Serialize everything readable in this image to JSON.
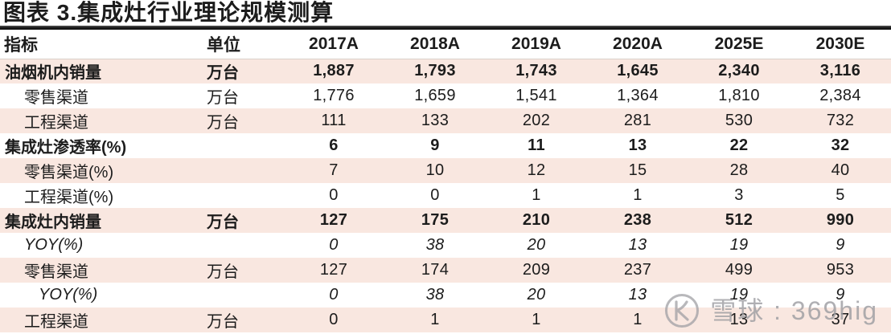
{
  "title": "图表 3.集成灶行业理论规模测算",
  "colors": {
    "stripe_pink": "#f9e7e0",
    "stripe_white": "#ffffff",
    "text": "#1c1c1c",
    "title_rule": "#161616",
    "watermark_gray": "#9e9ea3"
  },
  "table": {
    "header": {
      "indicator": "指标",
      "unit": "单位",
      "years": [
        "2017A",
        "2018A",
        "2019A",
        "2020A",
        "2025E",
        "2030E"
      ]
    },
    "rows": [
      {
        "label": "油烟机内销量",
        "indent": 0,
        "unit": "万台",
        "emphasis": "bold",
        "values": [
          "1,887",
          "1,793",
          "1,743",
          "1,645",
          "2,340",
          "3,116"
        ]
      },
      {
        "label": "零售渠道",
        "indent": 1,
        "unit": "万台",
        "emphasis": "normal",
        "values": [
          "1,776",
          "1,659",
          "1,541",
          "1,364",
          "1,810",
          "2,384"
        ]
      },
      {
        "label": "工程渠道",
        "indent": 1,
        "unit": "万台",
        "emphasis": "normal",
        "values": [
          "111",
          "133",
          "202",
          "281",
          "530",
          "732"
        ]
      },
      {
        "label": "集成灶渗透率(%)",
        "indent": 0,
        "unit": "",
        "emphasis": "bold",
        "values": [
          "6",
          "9",
          "11",
          "13",
          "22",
          "32"
        ]
      },
      {
        "label": "零售渠道(%)",
        "indent": 1,
        "unit": "",
        "emphasis": "normal",
        "values": [
          "7",
          "10",
          "12",
          "15",
          "28",
          "40"
        ]
      },
      {
        "label": "工程渠道(%)",
        "indent": 1,
        "unit": "",
        "emphasis": "normal",
        "values": [
          "0",
          "0",
          "1",
          "1",
          "3",
          "5"
        ]
      },
      {
        "label": "集成灶内销量",
        "indent": 0,
        "unit": "万台",
        "emphasis": "bold",
        "values": [
          "127",
          "175",
          "210",
          "238",
          "512",
          "990"
        ]
      },
      {
        "label": "YOY(%)",
        "indent": 1,
        "unit": "",
        "emphasis": "italic",
        "values": [
          "0",
          "38",
          "20",
          "13",
          "19",
          "9"
        ]
      },
      {
        "label": "零售渠道",
        "indent": 1,
        "unit": "万台",
        "emphasis": "normal",
        "values": [
          "127",
          "174",
          "209",
          "237",
          "499",
          "953"
        ]
      },
      {
        "label": "YOY(%)",
        "indent": 2,
        "unit": "",
        "emphasis": "italic",
        "values": [
          "0",
          "38",
          "20",
          "13",
          "19",
          "9"
        ]
      },
      {
        "label": "工程渠道",
        "indent": 1,
        "unit": "万台",
        "emphasis": "normal",
        "values": [
          "0",
          "1",
          "1",
          "1",
          "13",
          "37"
        ]
      }
    ]
  },
  "watermark": {
    "logo": "xueqiu-logo-icon",
    "text": "雪球 : 369hig"
  },
  "chart_data": {
    "type": "table",
    "title": "图表 3.集成灶行业理论规模测算",
    "columns": [
      "指标",
      "单位",
      "2017A",
      "2018A",
      "2019A",
      "2020A",
      "2025E",
      "2030E"
    ],
    "rows": [
      {
        "indicator": "油烟机内销量",
        "unit": "万台",
        "values": [
          1887,
          1793,
          1743,
          1645,
          2340,
          3116
        ]
      },
      {
        "indicator": "零售渠道",
        "unit": "万台",
        "values": [
          1776,
          1659,
          1541,
          1364,
          1810,
          2384
        ]
      },
      {
        "indicator": "工程渠道",
        "unit": "万台",
        "values": [
          111,
          133,
          202,
          281,
          530,
          732
        ]
      },
      {
        "indicator": "集成灶渗透率(%)",
        "unit": "",
        "values": [
          6,
          9,
          11,
          13,
          22,
          32
        ]
      },
      {
        "indicator": "零售渠道(%)",
        "unit": "",
        "values": [
          7,
          10,
          12,
          15,
          28,
          40
        ]
      },
      {
        "indicator": "工程渠道(%)",
        "unit": "",
        "values": [
          0,
          0,
          1,
          1,
          3,
          5
        ]
      },
      {
        "indicator": "集成灶内销量",
        "unit": "万台",
        "values": [
          127,
          175,
          210,
          238,
          512,
          990
        ]
      },
      {
        "indicator": "YOY(%)",
        "unit": "",
        "values": [
          0,
          38,
          20,
          13,
          19,
          9
        ]
      },
      {
        "indicator": "零售渠道",
        "unit": "万台",
        "values": [
          127,
          174,
          209,
          237,
          499,
          953
        ]
      },
      {
        "indicator": "YOY(%)",
        "unit": "",
        "values": [
          0,
          38,
          20,
          13,
          19,
          9
        ]
      },
      {
        "indicator": "工程渠道",
        "unit": "万台",
        "values": [
          0,
          1,
          1,
          1,
          13,
          37
        ]
      }
    ]
  }
}
